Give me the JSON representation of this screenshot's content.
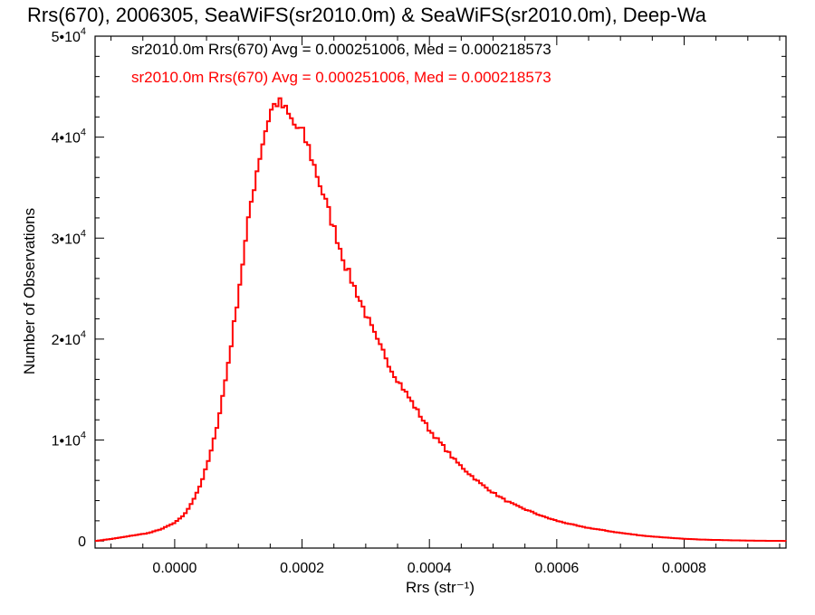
{
  "chart_data": {
    "type": "line",
    "step": true,
    "title": "Rrs(670), 2006305, SeaWiFS(sr2010.0m) & SeaWiFS(sr2010.0m), Deep-Wa",
    "xlabel": "Rrs (str⁻¹)",
    "ylabel": "Number of Observations",
    "xlim": [
      -0.000125,
      0.00096
    ],
    "ylim": [
      -700,
      50000
    ],
    "grid": false,
    "x_ticks": [
      {
        "value": 0.0,
        "label": "0.0000"
      },
      {
        "value": 0.0002,
        "label": "0.0002"
      },
      {
        "value": 0.0004,
        "label": "0.0004"
      },
      {
        "value": 0.0006,
        "label": "0.0006"
      },
      {
        "value": 0.0008,
        "label": "0.0008"
      }
    ],
    "y_ticks": [
      {
        "value": 0,
        "label": "0",
        "sup": ""
      },
      {
        "value": 10000,
        "label": "1•10",
        "sup": "4"
      },
      {
        "value": 20000,
        "label": "2•10",
        "sup": "4"
      },
      {
        "value": 30000,
        "label": "3•10",
        "sup": "4"
      },
      {
        "value": 40000,
        "label": "4•10",
        "sup": "4"
      },
      {
        "value": 50000,
        "label": "5•10",
        "sup": "4"
      }
    ],
    "legend": {
      "position": "top-left",
      "entries": [
        {
          "text": "sr2010.0m Rrs(670) Avg = 0.000251006, Med = 0.000218573",
          "color": "#000000"
        },
        {
          "text": "sr2010.0m Rrs(670) Avg = 0.000251006, Med = 0.000218573",
          "color": "#ff0000"
        }
      ]
    },
    "series": [
      {
        "color": "#ff0000",
        "x": [
          -0.000125,
          -0.0001,
          -8e-05,
          -6e-05,
          -4e-05,
          -2e-05,
          0.0,
          1e-05,
          2e-05,
          3e-05,
          4e-05,
          5e-05,
          6e-05,
          7e-05,
          8e-05,
          9e-05,
          0.0001,
          0.00011,
          0.00012,
          0.00013,
          0.00014,
          0.00015,
          0.00016,
          0.00017,
          0.00018,
          0.00019,
          0.0002,
          0.00021,
          0.00022,
          0.00023,
          0.00024,
          0.00025,
          0.00026,
          0.00027,
          0.00028,
          0.00029,
          0.0003,
          0.00031,
          0.00032,
          0.00033,
          0.00034,
          0.00035,
          0.00036,
          0.00037,
          0.00038,
          0.00039,
          0.0004,
          0.00042,
          0.00044,
          0.00046,
          0.00048,
          0.0005,
          0.00052,
          0.00054,
          0.00056,
          0.00058,
          0.0006,
          0.00062,
          0.00064,
          0.00066,
          0.00068,
          0.0007,
          0.00072,
          0.00074,
          0.00076,
          0.00078,
          0.0008,
          0.00082,
          0.00084,
          0.00086,
          0.00088,
          0.0009,
          0.00092,
          0.00094,
          0.00096
        ],
        "y": [
          0,
          200,
          400,
          600,
          800,
          1200,
          1800,
          2300,
          3000,
          4200,
          5500,
          7300,
          9500,
          12500,
          16000,
          20000,
          24500,
          29000,
          33500,
          37000,
          40000,
          42500,
          43500,
          43000,
          42000,
          41000,
          40500,
          39000,
          37000,
          35000,
          33000,
          31000,
          29000,
          27000,
          25500,
          24000,
          22500,
          21000,
          19500,
          18500,
          17000,
          16000,
          15000,
          14000,
          13000,
          12000,
          11000,
          9500,
          8000,
          6800,
          5700,
          4800,
          4000,
          3400,
          2900,
          2400,
          2000,
          1700,
          1400,
          1200,
          1000,
          800,
          650,
          500,
          400,
          300,
          220,
          160,
          120,
          90,
          60,
          40,
          25,
          15,
          10
        ]
      }
    ]
  }
}
